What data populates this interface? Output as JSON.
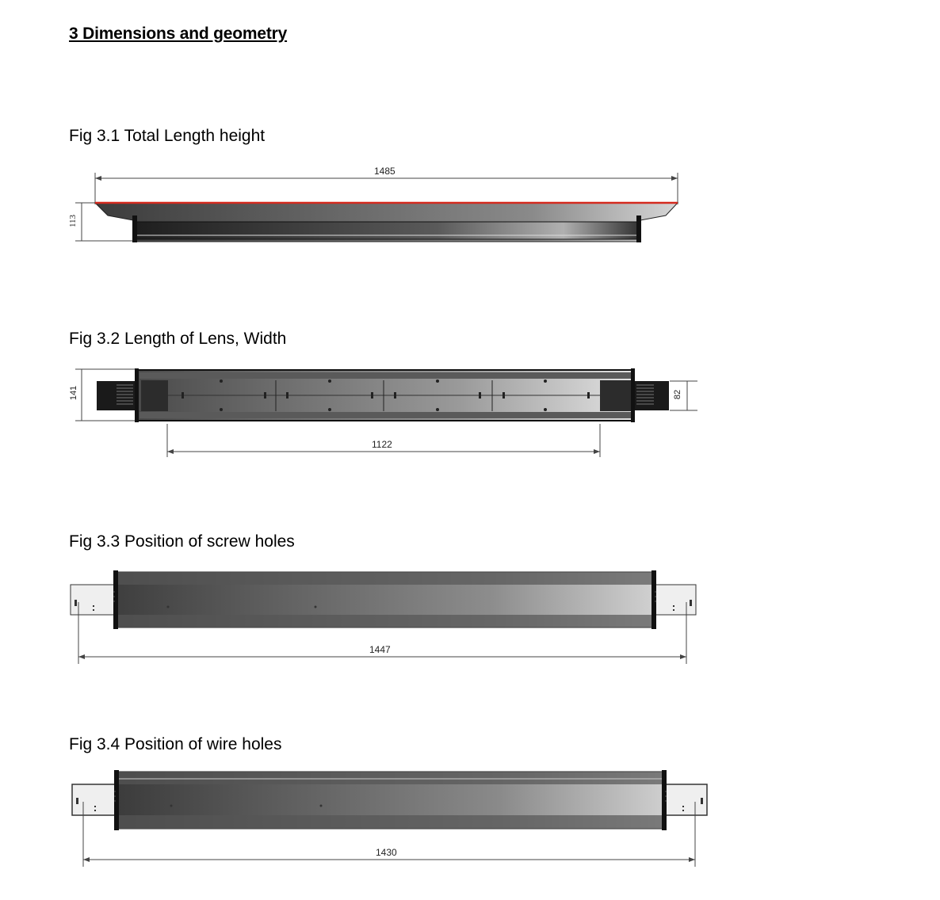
{
  "section": {
    "title": "3 Dimensions and geometry"
  },
  "figures": [
    {
      "caption": "Fig 3.1 Total Length height",
      "dimensions": {
        "length": "1485",
        "height": "113"
      }
    },
    {
      "caption": "Fig 3.2 Length of Lens, Width",
      "dimensions": {
        "width": "141",
        "lens_length": "1122",
        "end_width": "82"
      }
    },
    {
      "caption": "Fig 3.3 Position of screw holes",
      "dimensions": {
        "length": "1447"
      }
    },
    {
      "caption": "Fig 3.4 Position of wire holes",
      "dimensions": {
        "length": "1430"
      }
    }
  ],
  "colors": {
    "lens_edge": "#d42a1e",
    "body_dark": "#2f2f2f",
    "body_light": "#d9d9d9"
  }
}
